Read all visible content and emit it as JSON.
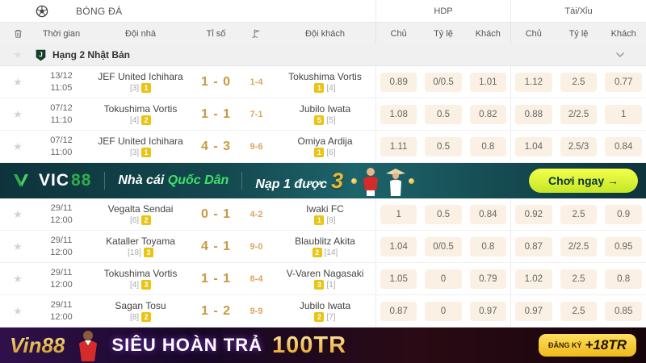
{
  "header": {
    "title": "BÓNG ĐÁ",
    "group_hdp": "HDP",
    "group_ou": "Tài/Xỉu",
    "cols": {
      "time": "Thời gian",
      "home": "Đội nhà",
      "score": "Tỉ số",
      "away": "Đội khách",
      "chu": "Chủ",
      "tyle": "Tỷ lệ",
      "khach": "Khách"
    }
  },
  "league": {
    "name": "Hạng 2 Nhật Bản"
  },
  "rows": [
    {
      "date": "13/12",
      "time": "11:05",
      "home": "JEF United Ichihara",
      "home_rank": "[3]",
      "home_badge": "1",
      "score": "1 - 0",
      "half": "1-4",
      "away": "Tokushima Vortis",
      "away_badge": "1",
      "away_rank": "[4]",
      "hdp": [
        "0.89",
        "0/0.5",
        "1.01"
      ],
      "ou": [
        "1.12",
        "2.5",
        "0.77"
      ]
    },
    {
      "date": "07/12",
      "time": "11:10",
      "home": "Tokushima Vortis",
      "home_rank": "[4]",
      "home_badge": "2",
      "score": "1 - 1",
      "half": "7-1",
      "away": "Jubilo Iwata",
      "away_badge": "5",
      "away_rank": "[5]",
      "hdp": [
        "1.08",
        "0.5",
        "0.82"
      ],
      "ou": [
        "0.88",
        "2/2.5",
        "1"
      ]
    },
    {
      "date": "07/12",
      "time": "11:00",
      "home": "JEF United Ichihara",
      "home_rank": "[3]",
      "home_badge": "1",
      "score": "4 - 3",
      "half": "9-6",
      "away": "Omiya Ardija",
      "away_badge": "1",
      "away_rank": "[6]",
      "hdp": [
        "1.11",
        "0.5",
        "0.8"
      ],
      "ou": [
        "1.04",
        "2.5/3",
        "0.84"
      ]
    },
    {
      "date": "29/11",
      "time": "12:00",
      "home": "Vegalta Sendai",
      "home_rank": "[6]",
      "home_badge": "2",
      "score": "0 - 1",
      "half": "4-2",
      "away": "Iwaki FC",
      "away_badge": "1",
      "away_rank": "[9]",
      "hdp": [
        "1",
        "0.5",
        "0.84"
      ],
      "ou": [
        "0.92",
        "2.5",
        "0.9"
      ]
    },
    {
      "date": "29/11",
      "time": "12:00",
      "home": "Kataller Toyama",
      "home_rank": "[18]",
      "home_badge": "3",
      "score": "4 - 1",
      "half": "9-0",
      "away": "Blaublitz Akita",
      "away_badge": "2",
      "away_rank": "[14]",
      "hdp": [
        "1.04",
        "0/0.5",
        "0.8"
      ],
      "ou": [
        "0.87",
        "2/2.5",
        "0.95"
      ]
    },
    {
      "date": "29/11",
      "time": "12:00",
      "home": "Tokushima Vortis",
      "home_rank": "[4]",
      "home_badge": "3",
      "score": "1 - 1",
      "half": "8-4",
      "away": "V-Varen Nagasaki",
      "away_badge": "3",
      "away_rank": "[1]",
      "hdp": [
        "1.05",
        "0",
        "0.79"
      ],
      "ou": [
        "1.02",
        "2.5",
        "0.8"
      ]
    },
    {
      "date": "29/11",
      "time": "12:00",
      "home": "Sagan Tosu",
      "home_rank": "[8]",
      "home_badge": "2",
      "score": "1 - 2",
      "half": "9-9",
      "away": "Jubilo Iwata",
      "away_badge": "2",
      "away_rank": "[7]",
      "hdp": [
        "0.87",
        "0",
        "0.97"
      ],
      "ou": [
        "0.97",
        "2.5",
        "0.85"
      ]
    }
  ],
  "vic_banner": {
    "logo_text": "VIC",
    "logo_num": "88",
    "tagline_white": "Nhà cái",
    "tagline_green": "Quốc Dân",
    "promo_text": "Nạp 1 được",
    "promo_num": "3",
    "cta": "Chơi ngay →"
  },
  "vin_banner": {
    "logo": "Vin88",
    "title": "SIÊU HOÀN TRẢ",
    "amount": "100TR",
    "cta_small": "ĐĂNG KÝ",
    "cta_big": "+18TR"
  },
  "colors": {
    "score_gold": "#c79a3e",
    "half_score_orange": "#e0a35e",
    "odds_cell_bg": "#faf0e3",
    "badge_yellow": "#e9c413",
    "vic_banner_teal": "#14494f",
    "vic_green": "#2fae4a",
    "vic_gold": "#e8b838",
    "vic_cta_yellow": "#d9f13c",
    "vin_banner_purple": "#2a0d3f",
    "vin_gold": "#e9b94d",
    "vin_cta_yellow": "#efb91a"
  }
}
